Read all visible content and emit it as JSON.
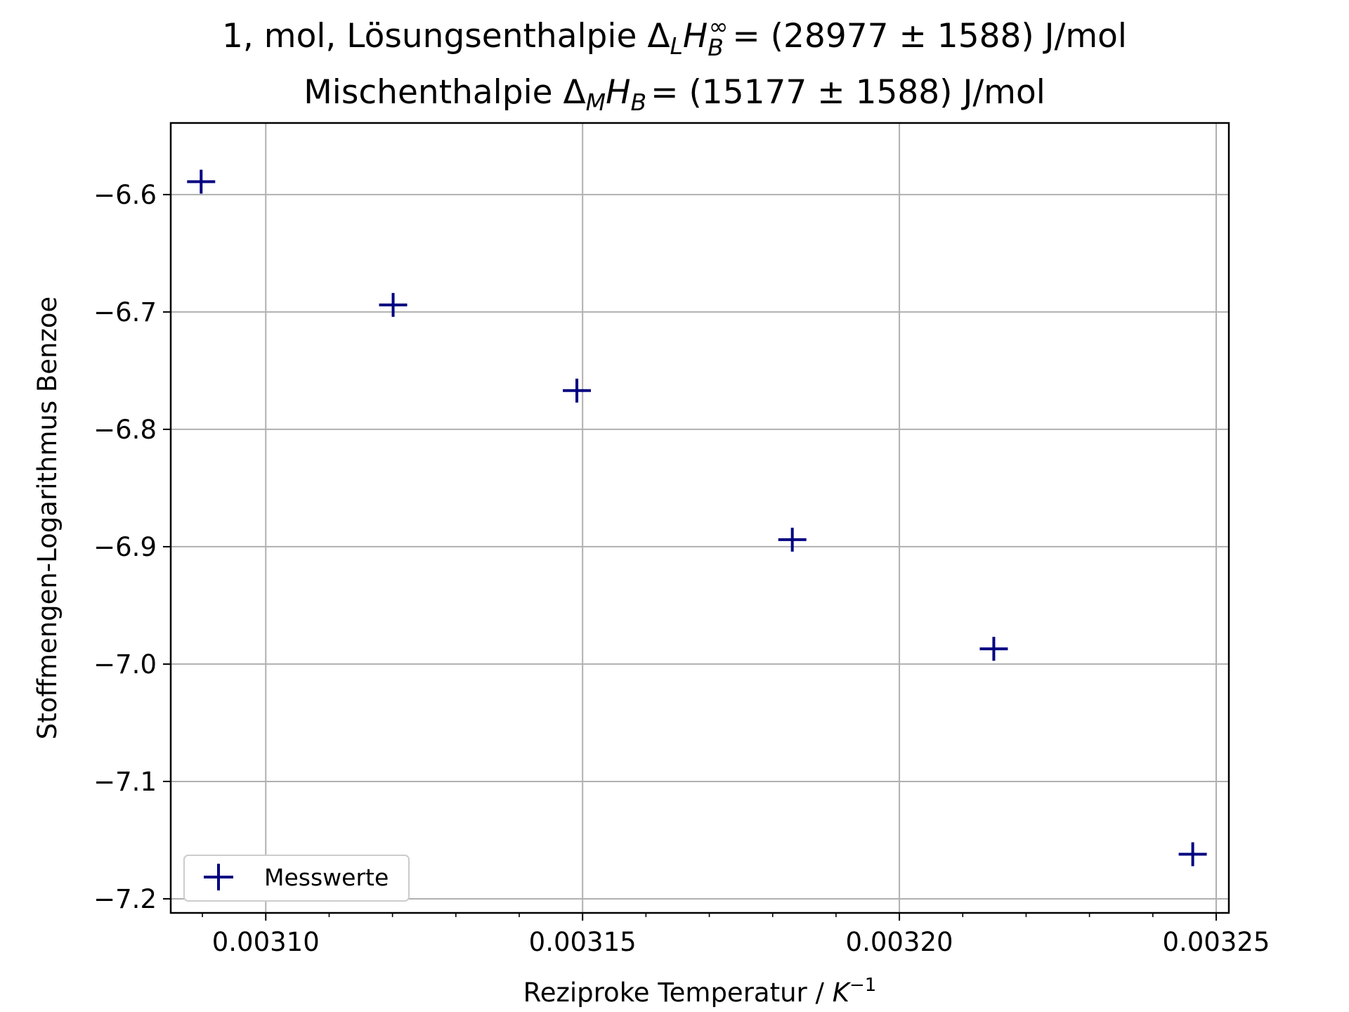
{
  "chart_data": {
    "type": "scatter",
    "title_line1": "1, mol, Lösungsenthalpie",
    "title_line1_value": "= (28977 ± 1588) J/mol",
    "title_line2": "Mischenthalpie",
    "title_line2_value": "=  (15177 ± 1588) J/mol",
    "xlabel": "Reziproke Temperatur / ",
    "xlabel_unit": "K",
    "xlabel_unit_exp": "−1",
    "ylabel": "Stoffmengen-Logarithmus Benzoe",
    "xlim": [
      0.003085,
      0.003252
    ],
    "ylim": [
      -7.212,
      -6.539
    ],
    "x_ticks": [
      0.0031,
      0.00315,
      0.0032,
      0.00325
    ],
    "x_tick_labels": [
      "0.00310",
      "0.00315",
      "0.00320",
      "0.00325"
    ],
    "x_minor_ticks": [
      0.00309,
      0.00311,
      0.00312,
      0.00313,
      0.00314,
      0.00316,
      0.00317,
      0.00318,
      0.00319,
      0.00321,
      0.00322,
      0.00323,
      0.00324
    ],
    "y_ticks": [
      -6.6,
      -6.7,
      -6.8,
      -6.9,
      -7.0,
      -7.1,
      -7.2
    ],
    "y_tick_labels": [
      "−6.6",
      "−6.7",
      "−6.8",
      "−6.9",
      "−7.0",
      "−7.1",
      "−7.2"
    ],
    "grid": true,
    "legend_position": "lower-left",
    "marker": "plus",
    "series": [
      {
        "name": "Messwerte",
        "color": "#000080",
        "x": [
          0.0030898,
          0.0031201,
          0.0031491,
          0.0031831,
          0.0032149,
          0.0032463
        ],
        "y": [
          -6.589,
          -6.694,
          -6.767,
          -6.894,
          -6.987,
          -7.162
        ]
      }
    ]
  }
}
